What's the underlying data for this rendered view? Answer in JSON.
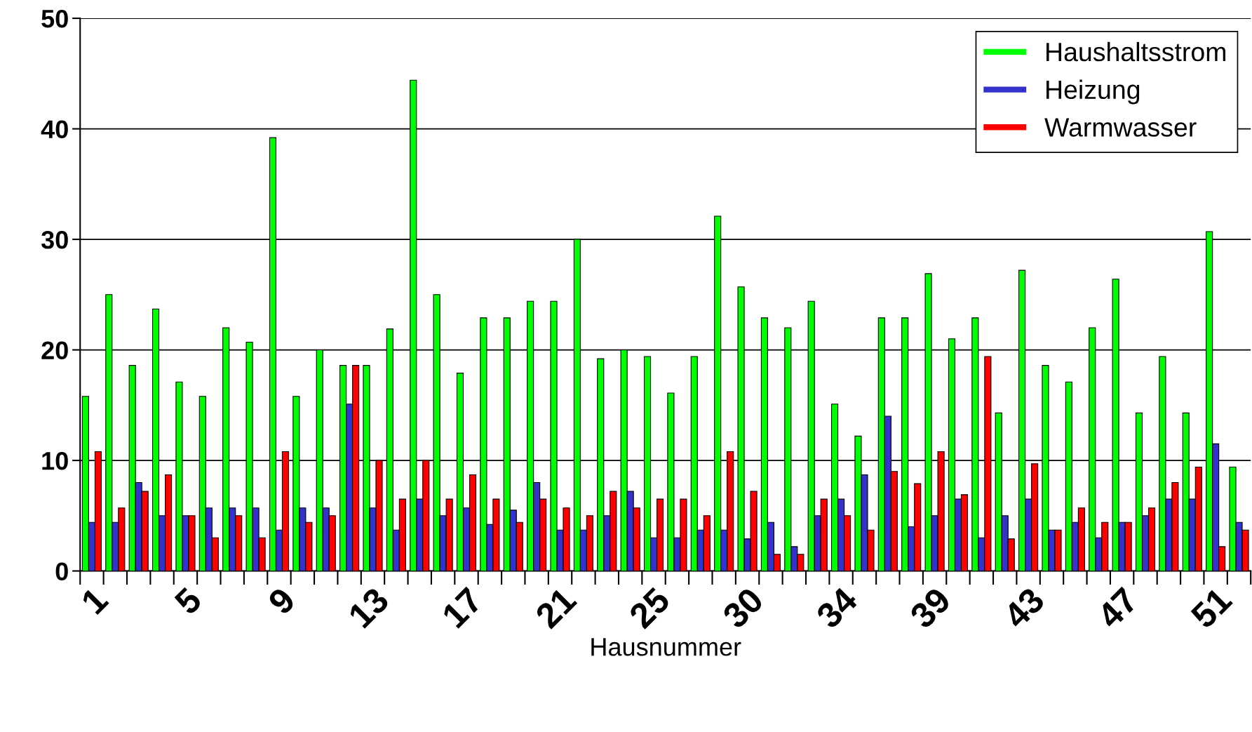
{
  "chart_data": {
    "type": "bar",
    "xlabel": "Hausnummer",
    "categories": [
      "1",
      null,
      null,
      null,
      "5",
      null,
      null,
      null,
      "9",
      null,
      null,
      null,
      "13",
      null,
      null,
      null,
      "17",
      null,
      null,
      null,
      "21",
      null,
      null,
      null,
      "25",
      null,
      null,
      null,
      "30",
      null,
      null,
      null,
      "34",
      null,
      null,
      null,
      "39",
      null,
      null,
      null,
      "43",
      null,
      null,
      null,
      "47",
      null,
      null,
      null,
      "51",
      null
    ],
    "series": [
      {
        "name": "Haushaltsstrom",
        "color": "#00ff00",
        "values": [
          15.8,
          25,
          18.6,
          23.7,
          17.1,
          15.8,
          22,
          20.7,
          39.2,
          15.8,
          20,
          18.6,
          18.6,
          21.9,
          44.4,
          25,
          17.9,
          22.9,
          22.9,
          24.4,
          24.4,
          30,
          19.2,
          20,
          19.4,
          16.1,
          19.4,
          32.1,
          25.7,
          22.9,
          22,
          24.4,
          15.1,
          12.2,
          22.9,
          22.9,
          26.9,
          21,
          22.9,
          14.3,
          27.2,
          18.6,
          17.1,
          22,
          26.4,
          14.3,
          19.4,
          14.3,
          30.7,
          9.4
        ]
      },
      {
        "name": "Heizung",
        "color": "#3333cc",
        "values": [
          4.4,
          4.4,
          8,
          5,
          5,
          5.7,
          5.7,
          5.7,
          3.7,
          5.7,
          5.7,
          15.1,
          5.7,
          3.7,
          6.5,
          5,
          5.7,
          4.2,
          5.5,
          8,
          3.7,
          3.7,
          5,
          7.2,
          3,
          3,
          3.7,
          3.7,
          2.9,
          4.4,
          2.2,
          5,
          6.5,
          8.7,
          14,
          4,
          5,
          6.5,
          3,
          5,
          6.5,
          3.7,
          4.4,
          3,
          4.4,
          5,
          6.5,
          6.5,
          11.5,
          4.4
        ]
      },
      {
        "name": "Warmwasser",
        "color": "#ff0000",
        "values": [
          10.8,
          5.7,
          7.2,
          8.7,
          5,
          3,
          5,
          3,
          10.8,
          4.4,
          5,
          18.6,
          10,
          6.5,
          10,
          6.5,
          8.7,
          6.5,
          4.4,
          6.5,
          5.7,
          5,
          7.2,
          5.7,
          6.5,
          6.5,
          5,
          10.8,
          7.2,
          1.5,
          1.5,
          6.5,
          5,
          3.7,
          9,
          7.9,
          10.8,
          6.9,
          19.4,
          2.9,
          9.7,
          3.7,
          5.7,
          4.4,
          4.4,
          5.7,
          8,
          9.4,
          2.2,
          3.7
        ]
      }
    ],
    "ylim": [
      0,
      50
    ],
    "yticks": [
      0,
      10,
      20,
      30,
      40,
      50
    ],
    "grid": "y",
    "legend": "top right"
  }
}
